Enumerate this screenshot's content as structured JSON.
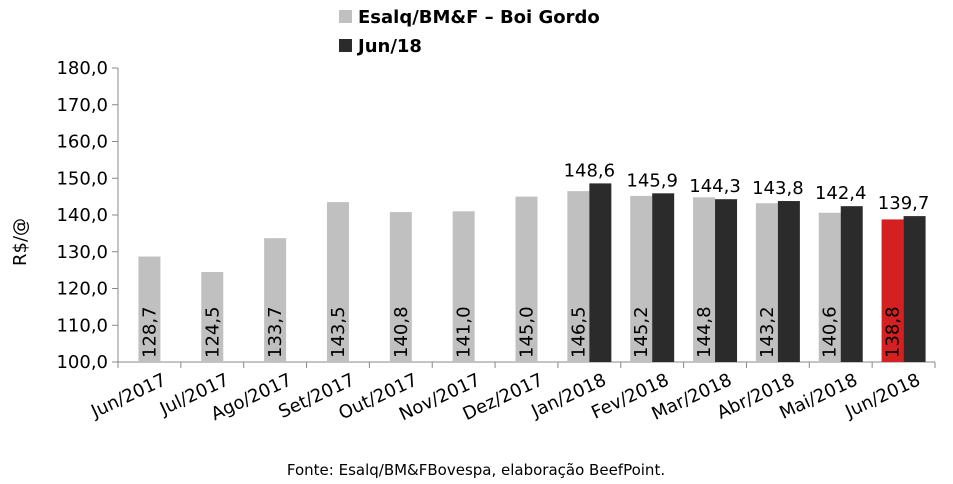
{
  "chart_data": {
    "type": "bar",
    "title": "",
    "ylabel": "R$/@",
    "xlabel": "",
    "ylim": [
      100,
      180
    ],
    "yticks": [
      "100,0",
      "110,0",
      "120,0",
      "130,0",
      "140,0",
      "150,0",
      "160,0",
      "170,0",
      "180,0"
    ],
    "categories": [
      "Jun/2017",
      "Jul/2017",
      "Ago/2017",
      "Set/2017",
      "Out/2017",
      "Nov/2017",
      "Dez/2017",
      "Jan/2018",
      "Fev/2018",
      "Mar/2018",
      "Abr/2018",
      "Mai/2018",
      "Jun/2018"
    ],
    "series": [
      {
        "name": "Esalq/BM&F – Boi Gordo",
        "color": "#c0c0c0",
        "values": [
          128.7,
          124.5,
          133.7,
          143.5,
          140.8,
          141.0,
          145.0,
          146.5,
          145.2,
          144.8,
          143.2,
          140.6,
          138.8
        ],
        "labels": [
          "128,7",
          "124,5",
          "133,7",
          "143,5",
          "140,8",
          "141,0",
          "145,0",
          "146,5",
          "145,2",
          "144,8",
          "143,2",
          "140,6",
          "138,8"
        ],
        "highlight_last_color": "#d42020"
      },
      {
        "name": "Jun/18",
        "color": "#2b2b2b",
        "values": [
          null,
          null,
          null,
          null,
          null,
          null,
          null,
          148.6,
          145.9,
          144.3,
          143.8,
          142.4,
          139.7
        ],
        "labels": [
          null,
          null,
          null,
          null,
          null,
          null,
          null,
          "148,6",
          "145,9",
          "144,3",
          "143,8",
          "142,4",
          "139,7"
        ]
      }
    ],
    "grid": false,
    "legend_position": "top-center"
  },
  "source": "Fonte: Esalq/BM&FBovespa, elaboração BeefPoint."
}
